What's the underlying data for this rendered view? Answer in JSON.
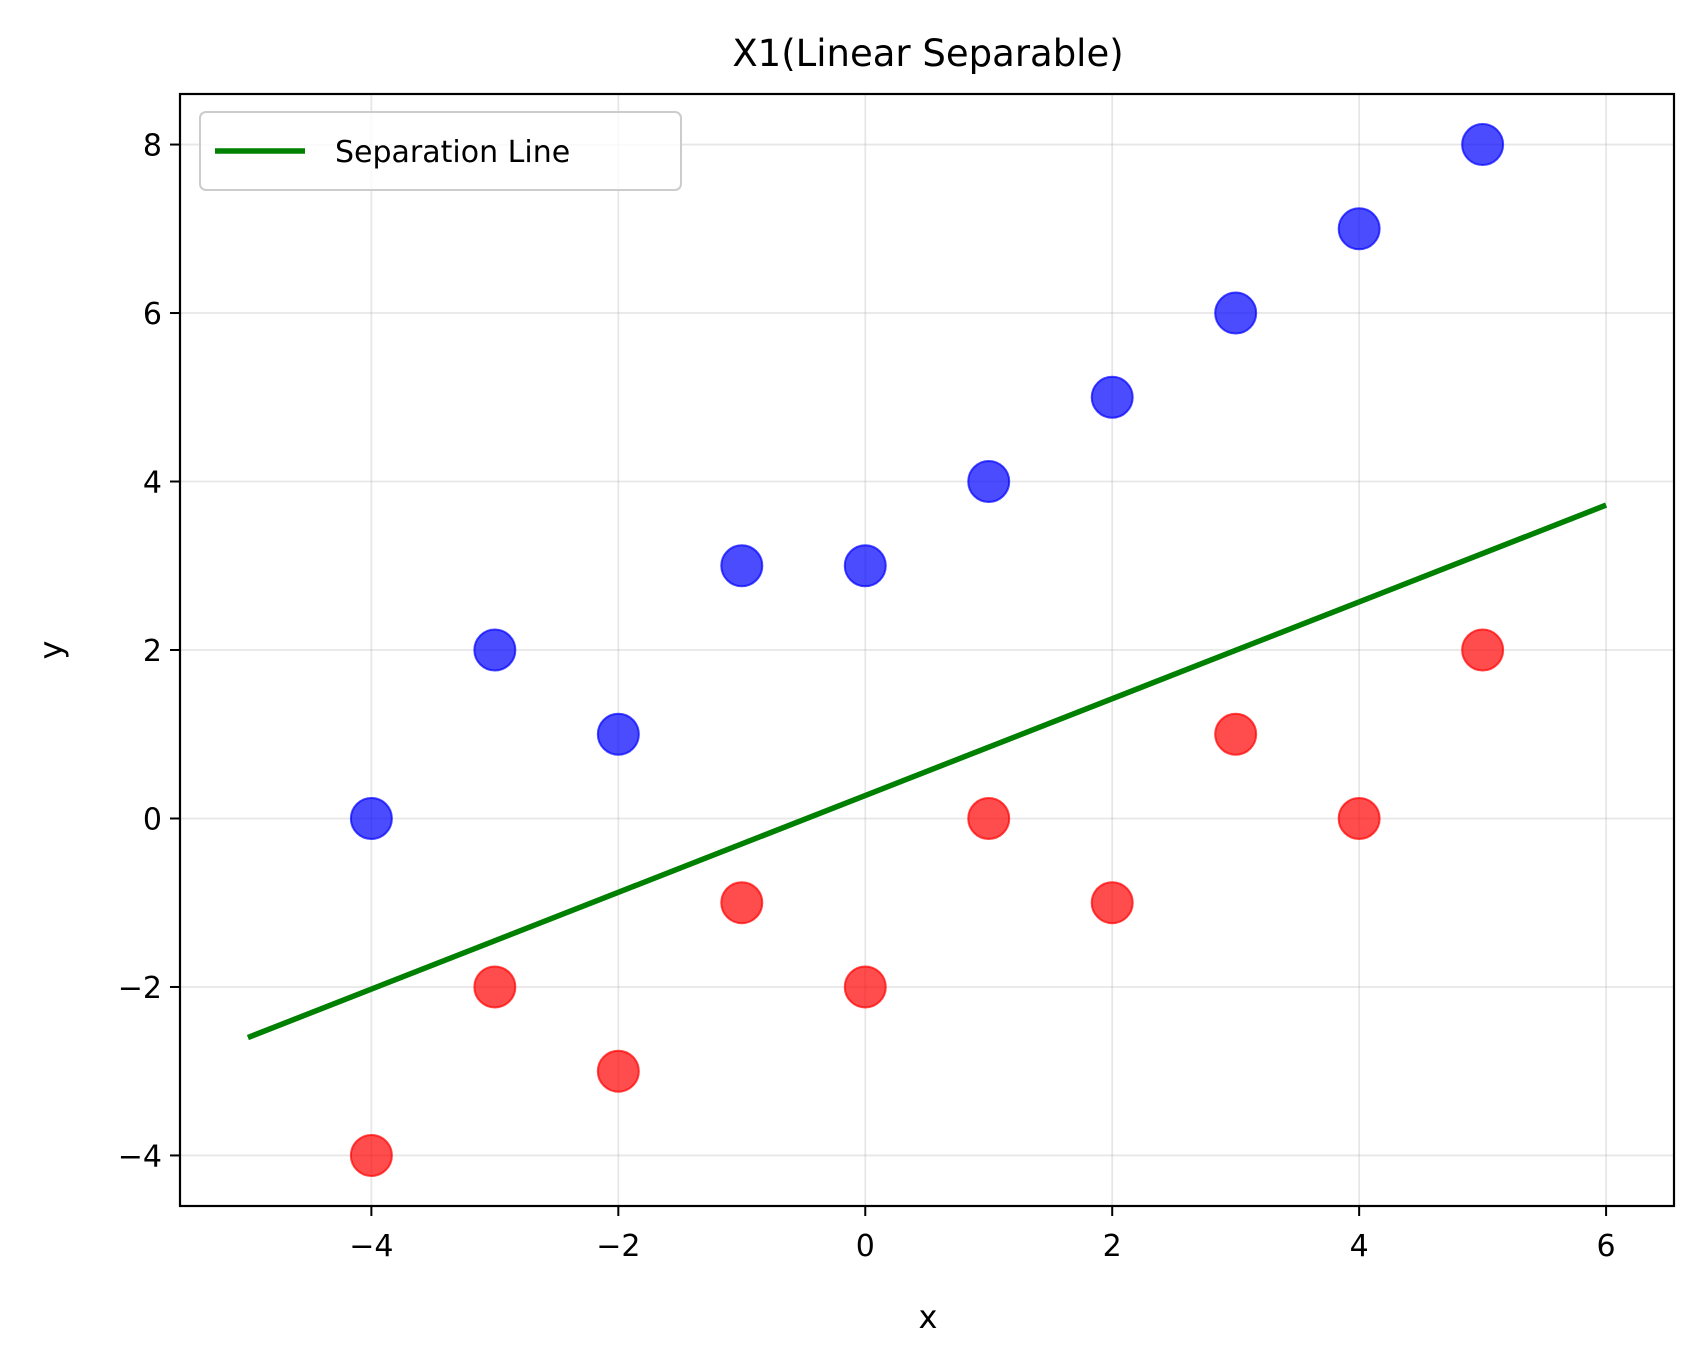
{
  "chart_data": {
    "type": "scatter",
    "title": "X1(Linear Separable)",
    "xlabel": "x",
    "ylabel": "y",
    "xlim": [
      -5.55,
      6.55
    ],
    "ylim": [
      -4.6,
      8.6
    ],
    "xticks": [
      -4,
      -2,
      0,
      2,
      4,
      6
    ],
    "yticks": [
      -4,
      -2,
      0,
      2,
      4,
      6,
      8
    ],
    "xtick_labels": [
      "−4",
      "−2",
      "0",
      "2",
      "4",
      "6"
    ],
    "ytick_labels": [
      "−4",
      "−2",
      "0",
      "2",
      "4",
      "6",
      "8"
    ],
    "grid": true,
    "legend_position": "upper-left",
    "series": [
      {
        "color": "#0000ff",
        "marker": "circle",
        "points": [
          [
            -4,
            0
          ],
          [
            -3,
            2
          ],
          [
            -2,
            1
          ],
          [
            -1,
            3
          ],
          [
            0,
            3
          ],
          [
            1,
            4
          ],
          [
            2,
            5
          ],
          [
            3,
            6
          ],
          [
            4,
            7
          ],
          [
            5,
            8
          ]
        ]
      },
      {
        "color": "#ff0000",
        "marker": "circle",
        "points": [
          [
            -4,
            -4
          ],
          [
            -3,
            -2
          ],
          [
            -2,
            -3
          ],
          [
            -1,
            -1
          ],
          [
            0,
            -2
          ],
          [
            1,
            0
          ],
          [
            2,
            -1
          ],
          [
            3,
            1
          ],
          [
            4,
            0
          ],
          [
            5,
            2
          ]
        ]
      }
    ],
    "lines": [
      {
        "name": "Separation Line",
        "color": "#008000",
        "points": [
          [
            -5,
            -2.6
          ],
          [
            6,
            3.72
          ]
        ]
      }
    ]
  }
}
